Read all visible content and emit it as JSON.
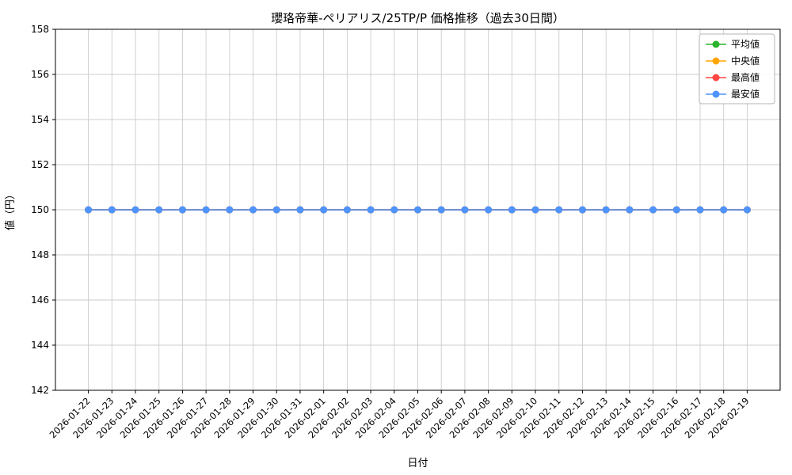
{
  "chart_data": {
    "type": "line",
    "title": "瓔珞帝華-ペリアリス/25TP/P 価格推移（過去30日間）",
    "xlabel": "日付",
    "ylabel": "値（円）",
    "ylim": [
      142,
      158
    ],
    "yticks": [
      142,
      144,
      146,
      148,
      150,
      152,
      154,
      156,
      158
    ],
    "grid": true,
    "legend_position": "upper right",
    "categories": [
      "2026-01-22",
      "2026-01-23",
      "2026-01-24",
      "2026-01-25",
      "2026-01-26",
      "2026-01-27",
      "2026-01-28",
      "2026-01-29",
      "2026-01-30",
      "2026-01-31",
      "2026-02-01",
      "2026-02-02",
      "2026-02-03",
      "2026-02-04",
      "2026-02-05",
      "2026-02-06",
      "2026-02-07",
      "2026-02-08",
      "2026-02-09",
      "2026-02-10",
      "2026-02-11",
      "2026-02-12",
      "2026-02-13",
      "2026-02-14",
      "2026-02-15",
      "2026-02-16",
      "2026-02-17",
      "2026-02-18",
      "2026-02-19"
    ],
    "series": [
      {
        "name": "平均値",
        "color": "#2cb42c",
        "values": [
          150,
          150,
          150,
          150,
          150,
          150,
          150,
          150,
          150,
          150,
          150,
          150,
          150,
          150,
          150,
          150,
          150,
          150,
          150,
          150,
          150,
          150,
          150,
          150,
          150,
          150,
          150,
          150,
          150
        ]
      },
      {
        "name": "中央値",
        "color": "#ffa500",
        "values": [
          150,
          150,
          150,
          150,
          150,
          150,
          150,
          150,
          150,
          150,
          150,
          150,
          150,
          150,
          150,
          150,
          150,
          150,
          150,
          150,
          150,
          150,
          150,
          150,
          150,
          150,
          150,
          150,
          150
        ]
      },
      {
        "name": "最高値",
        "color": "#ff4444",
        "values": [
          150,
          150,
          150,
          150,
          150,
          150,
          150,
          150,
          150,
          150,
          150,
          150,
          150,
          150,
          150,
          150,
          150,
          150,
          150,
          150,
          150,
          150,
          150,
          150,
          150,
          150,
          150,
          150,
          150
        ]
      },
      {
        "name": "最安値",
        "color": "#4d94ff",
        "values": [
          150,
          150,
          150,
          150,
          150,
          150,
          150,
          150,
          150,
          150,
          150,
          150,
          150,
          150,
          150,
          150,
          150,
          150,
          150,
          150,
          150,
          150,
          150,
          150,
          150,
          150,
          150,
          150,
          150
        ]
      }
    ]
  }
}
